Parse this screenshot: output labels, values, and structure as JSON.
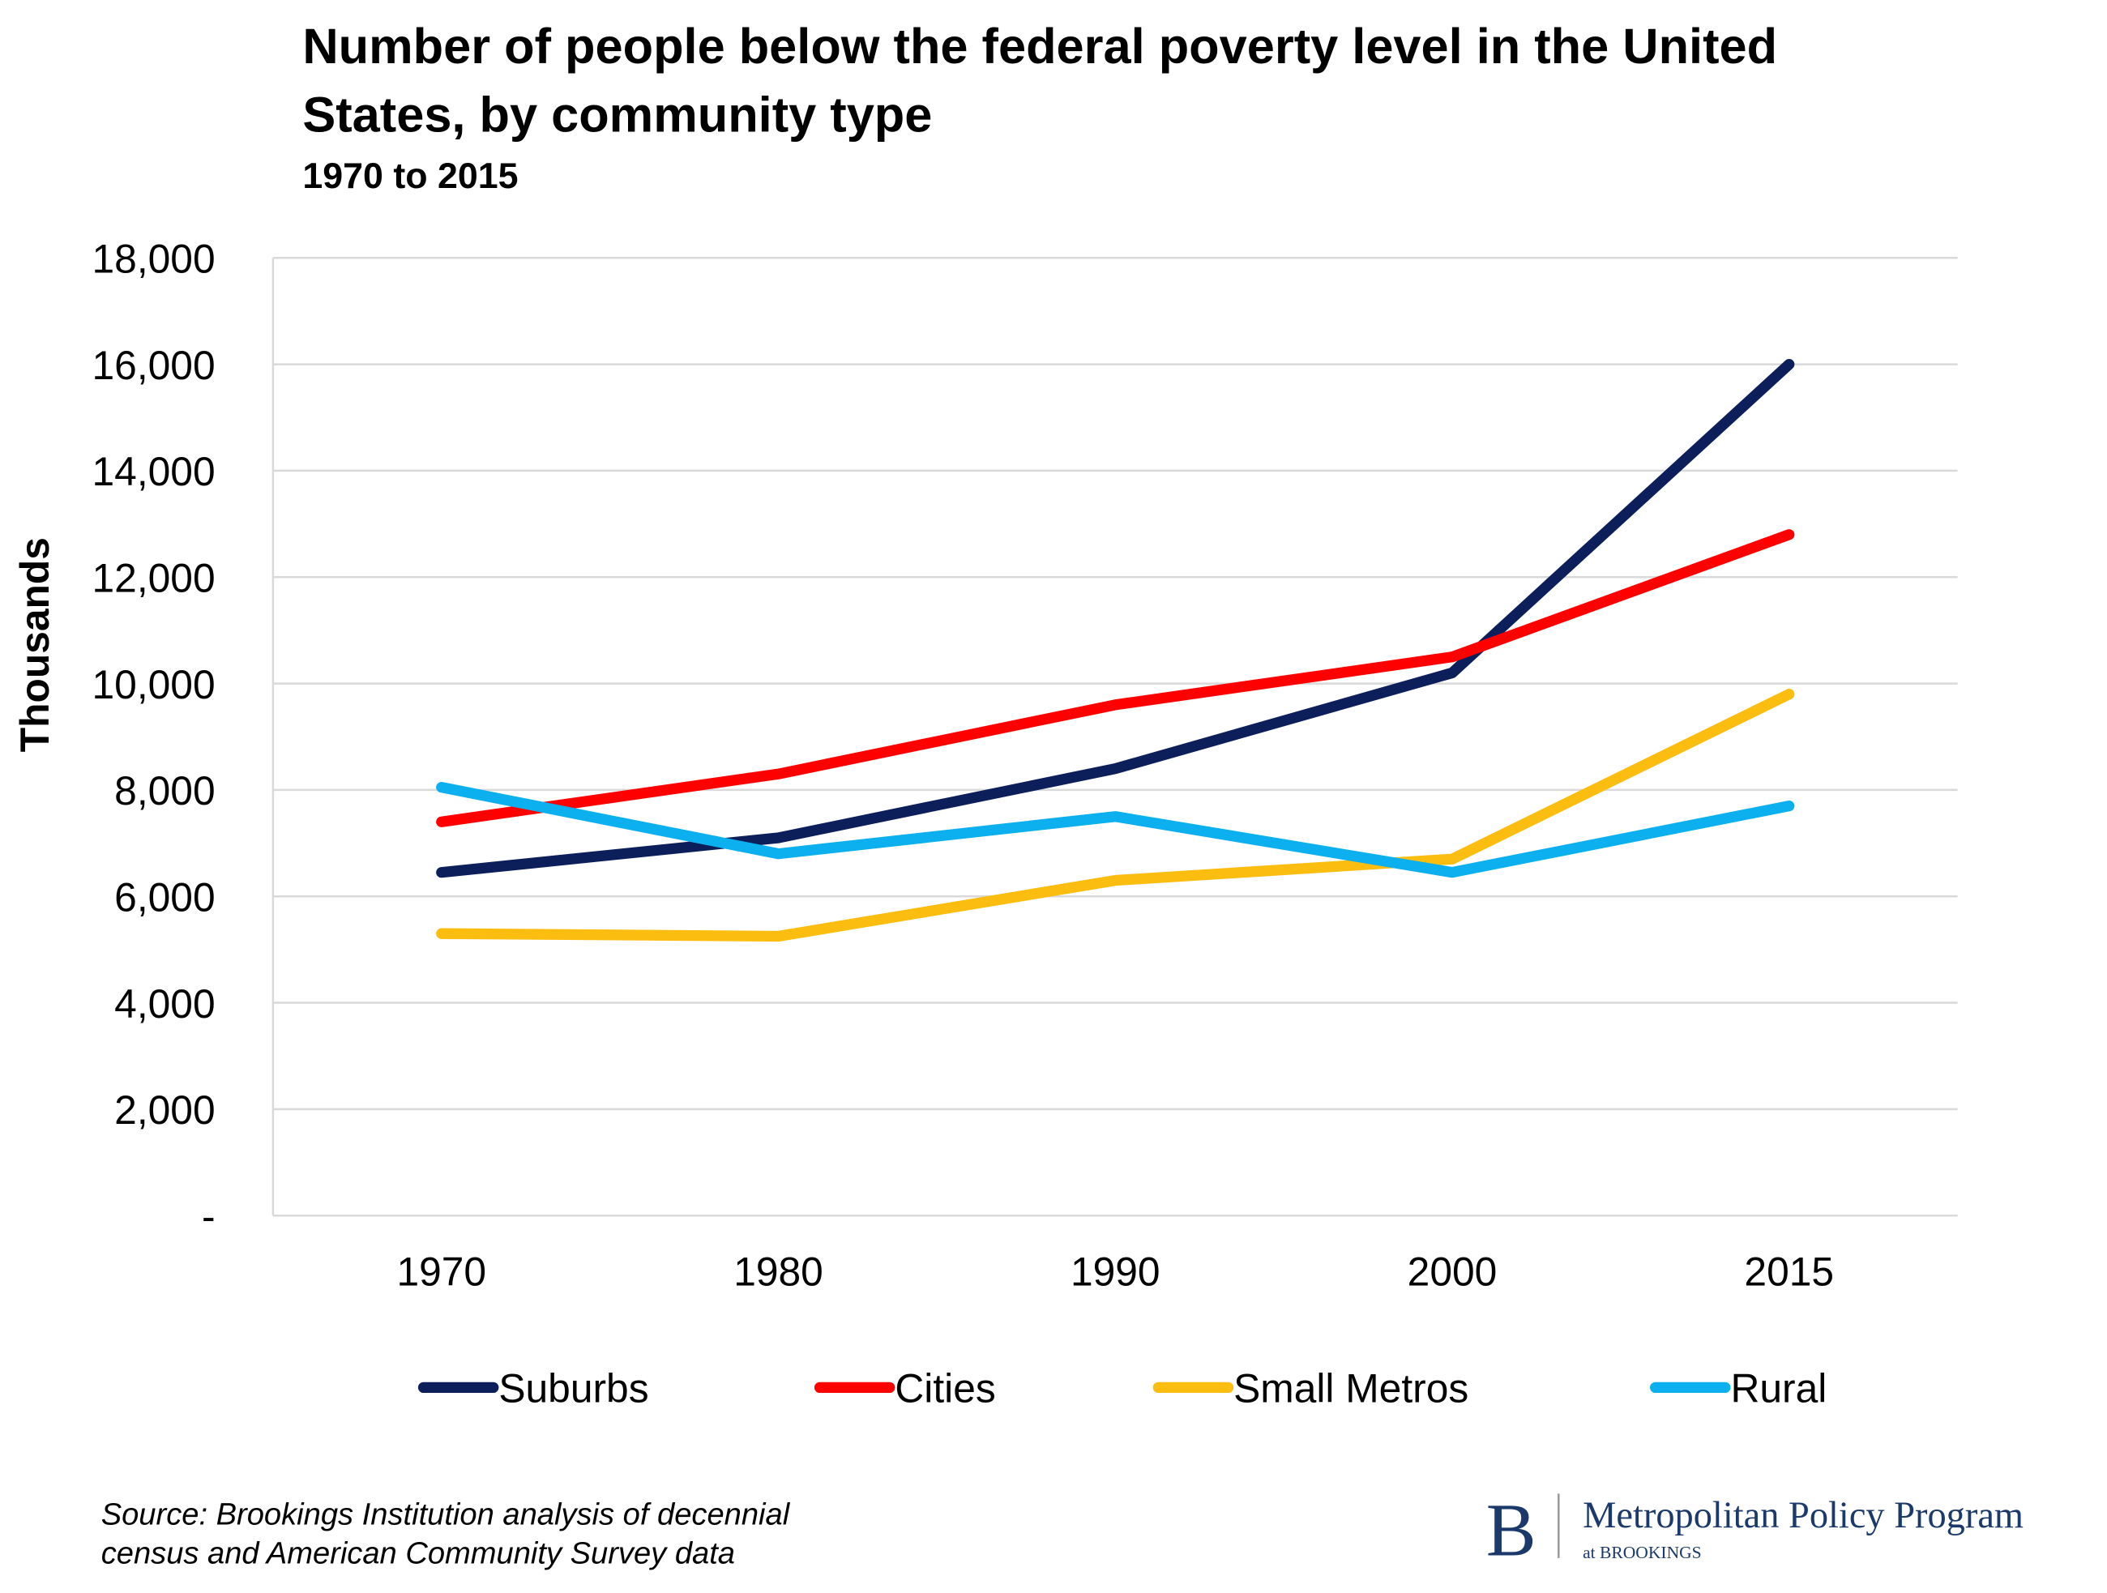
{
  "chart_data": {
    "type": "line",
    "title": [
      "Number of people below the federal poverty level in the United",
      "States, by community type"
    ],
    "subtitle": "1970 to 2015",
    "y_label": "Thousands",
    "categories": [
      "1970",
      "1980",
      "1990",
      "2000",
      "2015"
    ],
    "series": [
      {
        "name": "Suburbs",
        "color": "#0c1f5a",
        "values": [
          6450,
          7100,
          8400,
          10200,
          16000
        ]
      },
      {
        "name": "Cities",
        "color": "#ff0000",
        "values": [
          7400,
          8300,
          9600,
          10500,
          12800
        ]
      },
      {
        "name": "Small Metros",
        "color": "#fbbd0f",
        "values": [
          5300,
          5250,
          6300,
          6700,
          9800
        ]
      },
      {
        "name": "Rural",
        "color": "#0cb0ee",
        "values": [
          8050,
          6800,
          7500,
          6450,
          7700
        ]
      }
    ],
    "ylim": [
      0,
      18000
    ],
    "yticks": [
      {
        "value": 0,
        "label": "-"
      },
      {
        "value": 2000,
        "label": "2,000"
      },
      {
        "value": 4000,
        "label": "4,000"
      },
      {
        "value": 6000,
        "label": "6,000"
      },
      {
        "value": 8000,
        "label": "8,000"
      },
      {
        "value": 10000,
        "label": "10,000"
      },
      {
        "value": 12000,
        "label": "12,000"
      },
      {
        "value": 14000,
        "label": "14,000"
      },
      {
        "value": 16000,
        "label": "16,000"
      },
      {
        "value": 18000,
        "label": "18,000"
      }
    ],
    "grid": true,
    "legend": "bottom",
    "source": [
      "Source: Brookings Institution analysis of decennial",
      "census and American Community Survey data"
    ]
  },
  "logo": {
    "mark": "B",
    "name": "Metropolitan Policy Program",
    "sub": "at BROOKINGS"
  }
}
